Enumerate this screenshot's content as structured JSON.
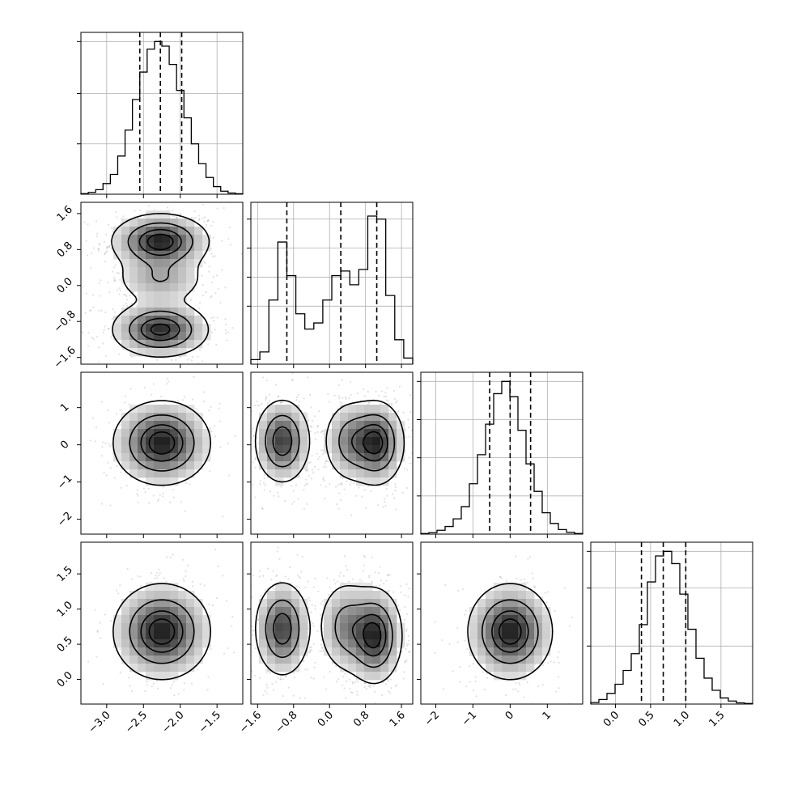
{
  "chart_data": {
    "type": "corner",
    "parameters": [
      {
        "axis_ticks": [
          "−3.0",
          "−2.5",
          "−2.0",
          "−1.5"
        ],
        "tick_values": [
          -3.0,
          -2.5,
          -2.0,
          -1.5
        ],
        "range": [
          -3.35,
          -1.15
        ],
        "quantiles": [
          -2.55,
          -2.27,
          -1.98
        ],
        "histogram": [
          0.004,
          0.012,
          0.03,
          0.07,
          0.13,
          0.25,
          0.42,
          0.62,
          0.8,
          0.95,
          1.0,
          0.97,
          0.85,
          0.68,
          0.5,
          0.33,
          0.2,
          0.11,
          0.05,
          0.02,
          0.008,
          0.003
        ]
      },
      {
        "axis_ticks": [
          "−1.6",
          "−0.8",
          "0.0",
          "0.8",
          "1.6"
        ],
        "tick_values": [
          -1.6,
          -0.8,
          0.0,
          0.8,
          1.6
        ],
        "range": [
          -1.75,
          1.85
        ],
        "quantiles": [
          -0.95,
          0.25,
          1.05
        ],
        "histogram": [
          0.03,
          0.08,
          0.42,
          0.8,
          0.58,
          0.33,
          0.23,
          0.27,
          0.42,
          0.58,
          0.61,
          0.52,
          0.62,
          0.97,
          0.95,
          0.45,
          0.16,
          0.04
        ]
      },
      {
        "axis_ticks": [
          "−2",
          "−1",
          "0",
          "1"
        ],
        "tick_values": [
          -2,
          -1,
          0,
          1
        ],
        "range": [
          -2.4,
          1.95
        ],
        "quantiles": [
          -0.55,
          0.0,
          0.55
        ],
        "histogram": [
          0.004,
          0.01,
          0.025,
          0.05,
          0.1,
          0.18,
          0.33,
          0.52,
          0.72,
          0.92,
          1.0,
          0.9,
          0.68,
          0.46,
          0.28,
          0.14,
          0.07,
          0.03,
          0.012,
          0.004
        ]
      },
      {
        "axis_ticks": [
          "0.0",
          "0.5",
          "1.0",
          "1.5"
        ],
        "tick_values": [
          0.0,
          0.5,
          1.0,
          1.5
        ],
        "range": [
          -0.35,
          1.95
        ],
        "quantiles": [
          0.37,
          0.68,
          1.0
        ],
        "histogram": [
          0.01,
          0.03,
          0.07,
          0.13,
          0.22,
          0.33,
          0.52,
          0.8,
          0.97,
          1.0,
          0.92,
          0.72,
          0.49,
          0.3,
          0.17,
          0.09,
          0.04,
          0.02,
          0.008,
          0.004
        ]
      }
    ],
    "histogram_y_ticks": [
      [
        0.33,
        0.66,
        1.0
      ],
      [
        0.38,
        0.57,
        0.76,
        0.95
      ],
      [
        0.25,
        0.5,
        0.75,
        1.0
      ],
      [
        0.38,
        0.76,
        1.0
      ]
    ],
    "pairs": [
      {
        "x": 0,
        "y": 1,
        "modes": [
          [
            -2.27,
            0.98,
            0.9
          ],
          [
            -2.27,
            0.15,
            0.35
          ],
          [
            -2.27,
            -0.98,
            0.85
          ]
        ],
        "spread": [
          0.32,
          0.3
        ]
      },
      {
        "x": 0,
        "y": 2,
        "modes": [
          [
            -2.25,
            0.05,
            1.0
          ]
        ],
        "spread": [
          0.32,
          0.55
        ]
      },
      {
        "x": 1,
        "y": 2,
        "modes": [
          [
            -1.05,
            0.1,
            0.75
          ],
          [
            0.45,
            0.1,
            0.45
          ],
          [
            1.05,
            0.05,
            0.8
          ]
        ],
        "spread": [
          0.3,
          0.55
        ]
      },
      {
        "x": 0,
        "y": 3,
        "modes": [
          [
            -2.25,
            0.68,
            1.0
          ]
        ],
        "spread": [
          0.32,
          0.33
        ]
      },
      {
        "x": 1,
        "y": 3,
        "modes": [
          [
            -1.05,
            0.72,
            0.75
          ],
          [
            0.35,
            0.75,
            0.45
          ],
          [
            1.0,
            0.62,
            0.85
          ]
        ],
        "spread": [
          0.3,
          0.33
        ]
      },
      {
        "x": 2,
        "y": 3,
        "modes": [
          [
            0.0,
            0.68,
            1.0
          ]
        ],
        "spread": [
          0.55,
          0.33
        ]
      }
    ],
    "contour_levels": [
      0.118,
      0.393,
      0.675,
      0.865
    ],
    "grid": true
  }
}
